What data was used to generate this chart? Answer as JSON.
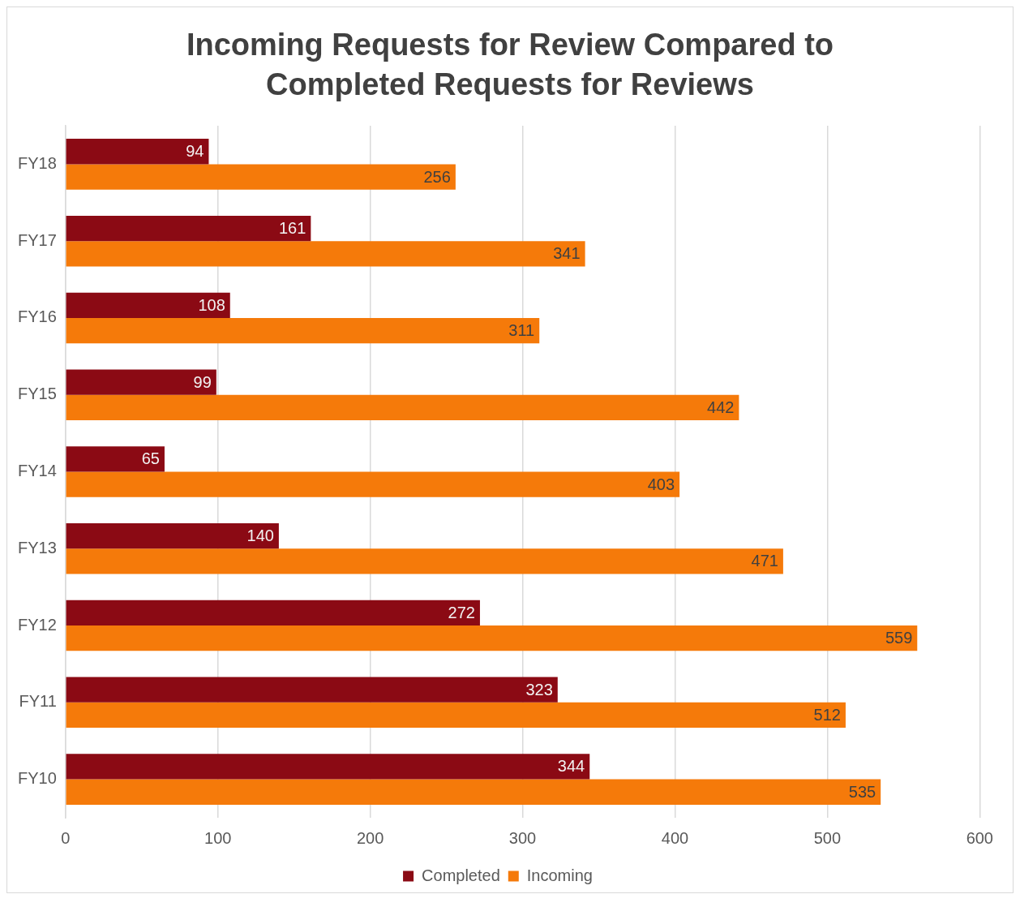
{
  "chart_data": {
    "type": "bar",
    "orientation": "horizontal",
    "title": "Incoming Requests for Review Compared to Completed Requests for Reviews",
    "categories": [
      "FY18",
      "FY17",
      "FY16",
      "FY15",
      "FY14",
      "FY13",
      "FY12",
      "FY11",
      "FY10"
    ],
    "series": [
      {
        "name": "Completed",
        "color": "#8b0a14",
        "values": [
          94,
          161,
          108,
          99,
          65,
          140,
          272,
          323,
          344
        ]
      },
      {
        "name": "Incoming",
        "color": "#f57a0a",
        "values": [
          256,
          341,
          311,
          442,
          403,
          471,
          559,
          512,
          535
        ]
      }
    ],
    "xlim": [
      0,
      600
    ],
    "xticks": [
      0,
      100,
      200,
      300,
      400,
      500,
      600
    ],
    "grid": "x",
    "legend": "bottom",
    "data_labels": true
  }
}
